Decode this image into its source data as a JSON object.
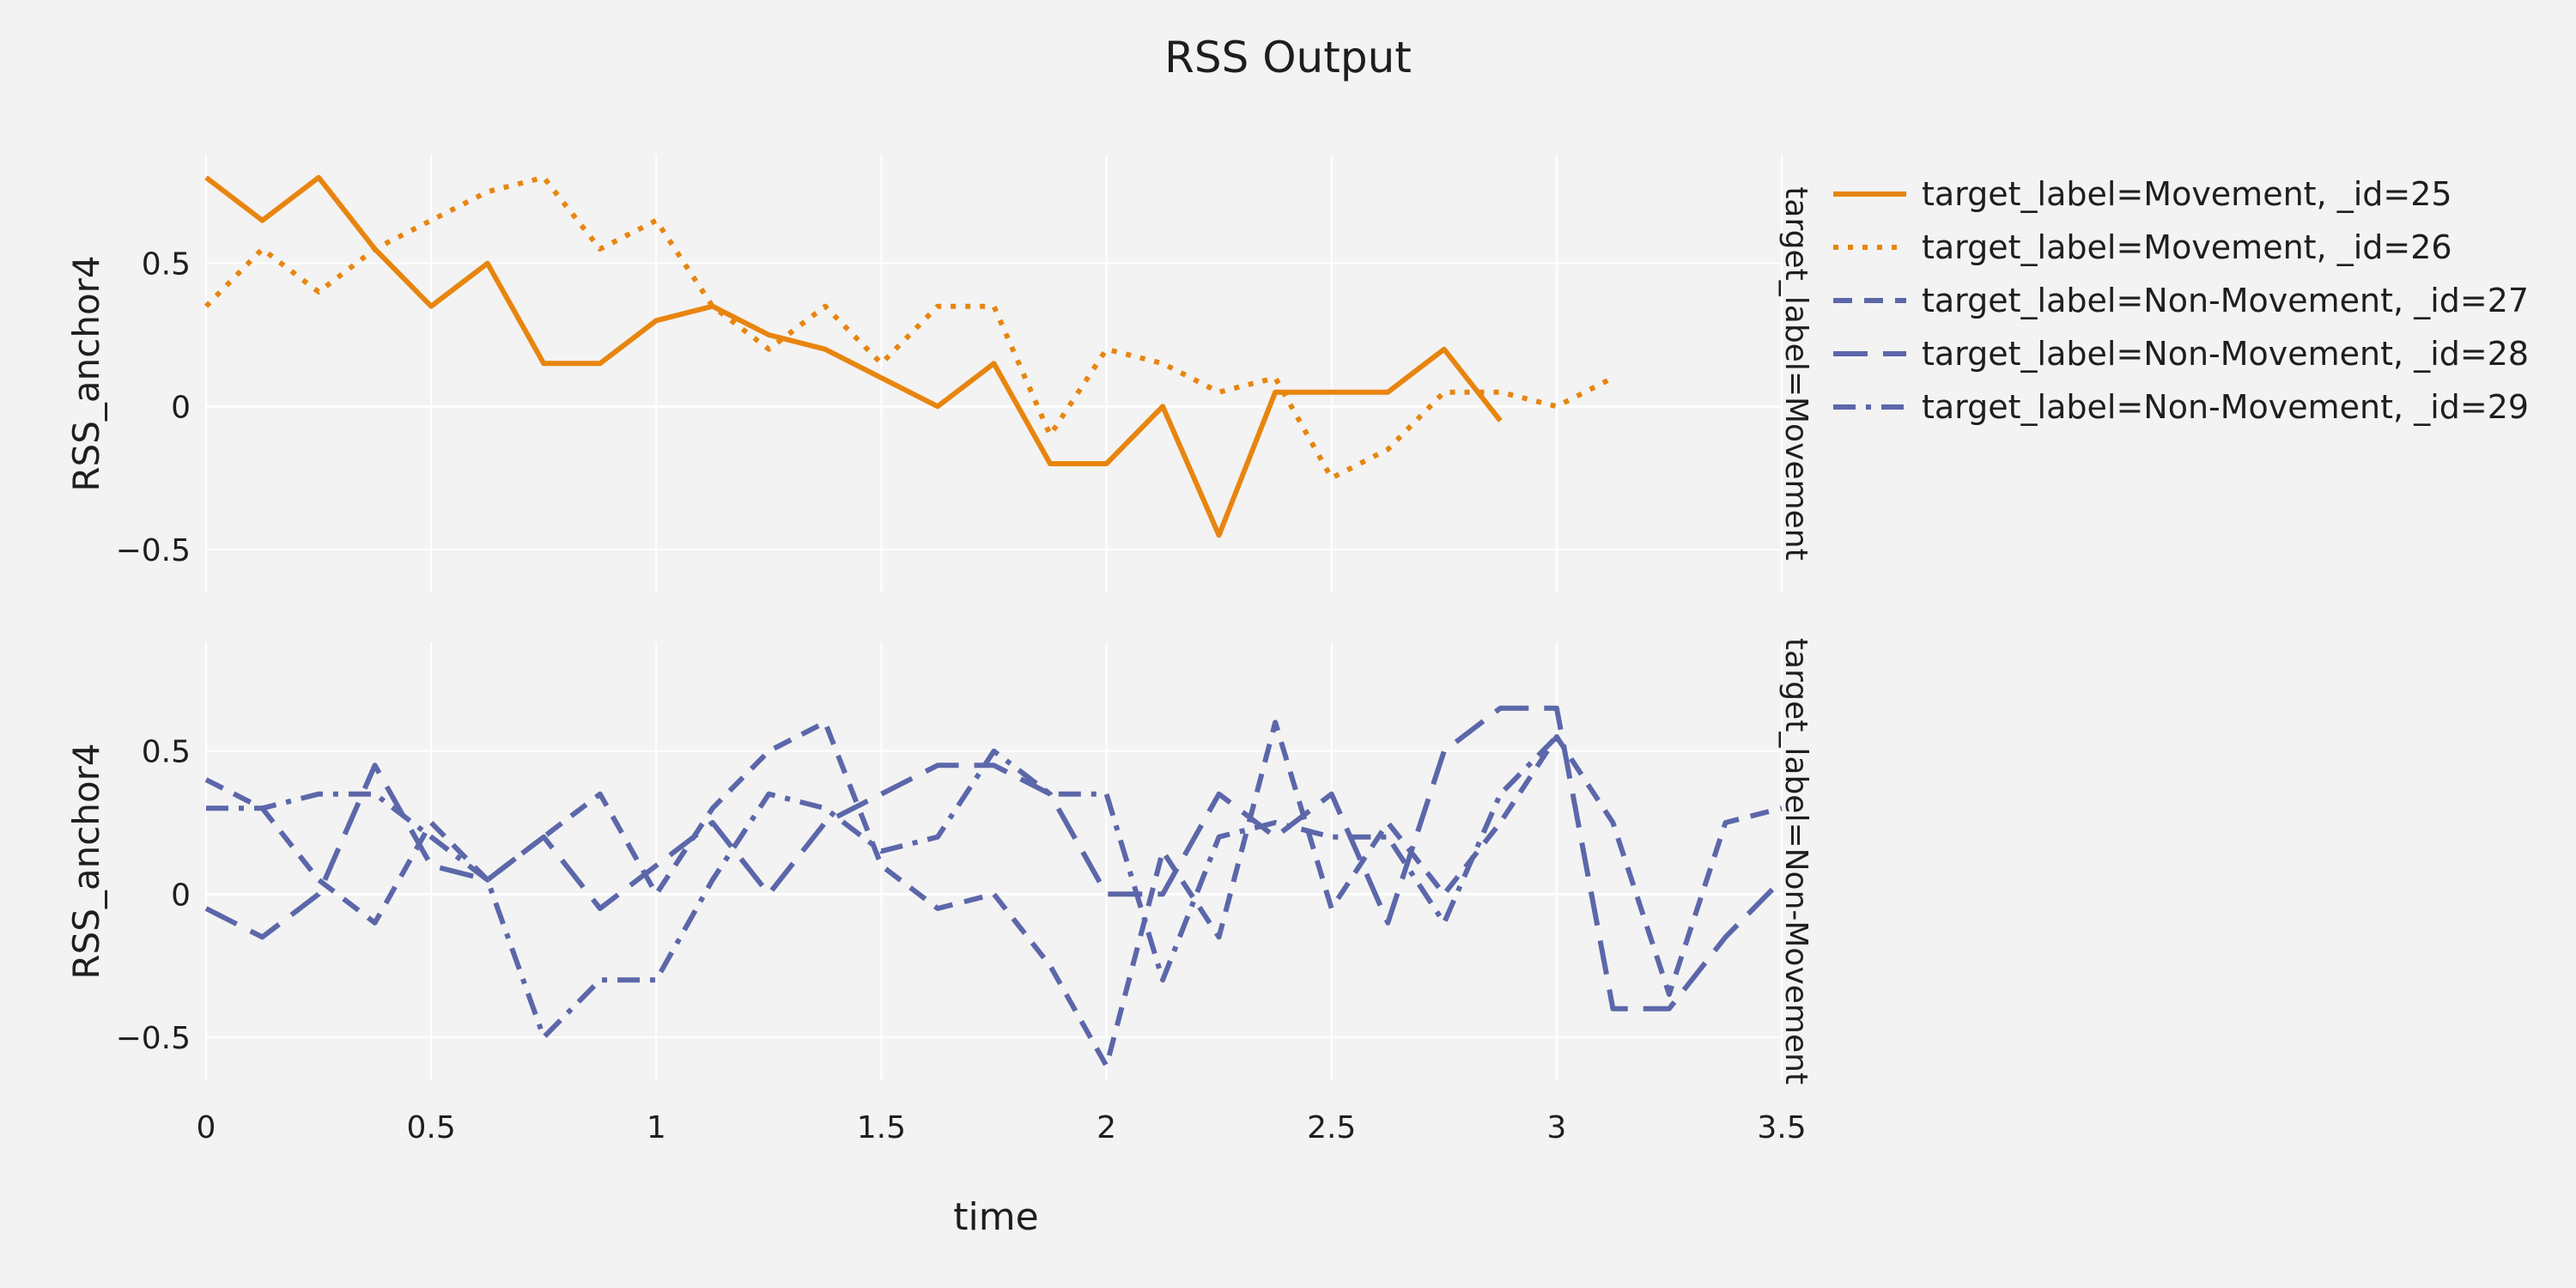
{
  "chart_data": {
    "type": "line",
    "title": "RSS Output",
    "xlabel": "time",
    "ylabel": "RSS_anchor4",
    "xlim": [
      0,
      3.5
    ],
    "ylim": [
      -0.65,
      0.88
    ],
    "x_ticks": [
      0,
      0.5,
      1,
      1.5,
      2,
      2.5,
      3,
      3.5
    ],
    "x_tick_labels": [
      "0",
      "0.5",
      "1",
      "1.5",
      "2",
      "2.5",
      "3",
      "3.5"
    ],
    "y_ticks": [
      -0.5,
      0,
      0.5
    ],
    "y_tick_labels": [
      "−0.5",
      "0",
      "0.5"
    ],
    "grid": true,
    "legend_position": "top-right",
    "colors": {
      "movement": "#e8850f",
      "non_movement": "#5c67aa",
      "background": "#f3f3f3",
      "grid": "#ffffff"
    },
    "facets": [
      {
        "label": "target_label=Movement",
        "series": [
          {
            "name": "target_label=Movement, _id=25",
            "dash": "solid",
            "x": [
              0,
              0.125,
              0.25,
              0.375,
              0.5,
              0.625,
              0.75,
              0.875,
              1,
              1.125,
              1.25,
              1.375,
              1.5,
              1.625,
              1.75,
              1.875,
              2,
              2.125,
              2.25,
              2.375,
              2.5,
              2.625,
              2.75,
              2.875
            ],
            "y": [
              0.8,
              0.65,
              0.8,
              0.55,
              0.35,
              0.5,
              0.15,
              0.15,
              0.3,
              0.35,
              0.25,
              0.2,
              0.1,
              0.0,
              0.15,
              -0.2,
              -0.2,
              0.0,
              -0.45,
              0.05,
              0.05,
              0.05,
              0.2,
              -0.05
            ]
          },
          {
            "name": "target_label=Movement, _id=26",
            "dash": "dot",
            "x": [
              0,
              0.125,
              0.25,
              0.375,
              0.5,
              0.625,
              0.75,
              0.875,
              1,
              1.125,
              1.25,
              1.375,
              1.5,
              1.625,
              1.75,
              1.875,
              2,
              2.125,
              2.25,
              2.375,
              2.5,
              2.625,
              2.75,
              2.875,
              3,
              3.125
            ],
            "y": [
              0.35,
              0.55,
              0.4,
              0.55,
              0.65,
              0.75,
              0.8,
              0.55,
              0.65,
              0.35,
              0.2,
              0.35,
              0.15,
              0.35,
              0.35,
              -0.1,
              0.2,
              0.15,
              0.05,
              0.1,
              -0.25,
              -0.15,
              0.05,
              0.05,
              0.0,
              0.1
            ]
          }
        ]
      },
      {
        "label": "target_label=Non-Movement",
        "series": [
          {
            "name": "target_label=Non-Movement, _id=27",
            "dash": "dash",
            "x": [
              0,
              0.125,
              0.25,
              0.375,
              0.5,
              0.625,
              0.75,
              0.875,
              1,
              1.125,
              1.25,
              1.375,
              1.5,
              1.625,
              1.75,
              1.875,
              2,
              2.125,
              2.25,
              2.375,
              2.5,
              2.625,
              2.75,
              2.875,
              3,
              3.125,
              3.25,
              3.375,
              3.5
            ],
            "y": [
              0.4,
              0.3,
              0.05,
              -0.1,
              0.25,
              0.05,
              0.2,
              0.35,
              0.0,
              0.3,
              0.5,
              0.6,
              0.1,
              -0.05,
              0.0,
              -0.25,
              -0.6,
              0.15,
              -0.15,
              0.6,
              -0.05,
              0.25,
              0.0,
              0.25,
              0.55,
              0.25,
              -0.35,
              0.25,
              0.3
            ]
          },
          {
            "name": "target_label=Non-Movement, _id=28",
            "dash": "longdash",
            "x": [
              0,
              0.125,
              0.25,
              0.375,
              0.5,
              0.625,
              0.75,
              0.875,
              1,
              1.125,
              1.25,
              1.375,
              1.5,
              1.625,
              1.75,
              1.875,
              2,
              2.125,
              2.25,
              2.375,
              2.5,
              2.625,
              2.75,
              2.875,
              3,
              3.125,
              3.25,
              3.375,
              3.5
            ],
            "y": [
              -0.05,
              -0.15,
              0.0,
              0.45,
              0.1,
              0.05,
              0.2,
              -0.05,
              0.1,
              0.25,
              0.0,
              0.25,
              0.35,
              0.45,
              0.45,
              0.35,
              0.0,
              0.0,
              0.35,
              0.2,
              0.35,
              -0.1,
              0.5,
              0.65,
              0.65,
              -0.4,
              -0.4,
              -0.15,
              0.05
            ]
          },
          {
            "name": "target_label=Non-Movement, _id=29",
            "dash": "dashdot",
            "x": [
              0,
              0.125,
              0.25,
              0.375,
              0.5,
              0.625,
              0.75,
              0.875,
              1,
              1.125,
              1.25,
              1.375,
              1.5,
              1.625,
              1.75,
              1.875,
              2,
              2.125,
              2.25,
              2.375,
              2.5,
              2.625,
              2.75,
              2.875,
              3
            ],
            "y": [
              0.3,
              0.3,
              0.35,
              0.35,
              0.2,
              0.05,
              -0.5,
              -0.3,
              -0.3,
              0.05,
              0.35,
              0.3,
              0.15,
              0.2,
              0.5,
              0.35,
              0.35,
              -0.3,
              0.2,
              0.25,
              0.2,
              0.2,
              -0.1,
              0.35,
              0.55
            ]
          }
        ]
      }
    ]
  }
}
